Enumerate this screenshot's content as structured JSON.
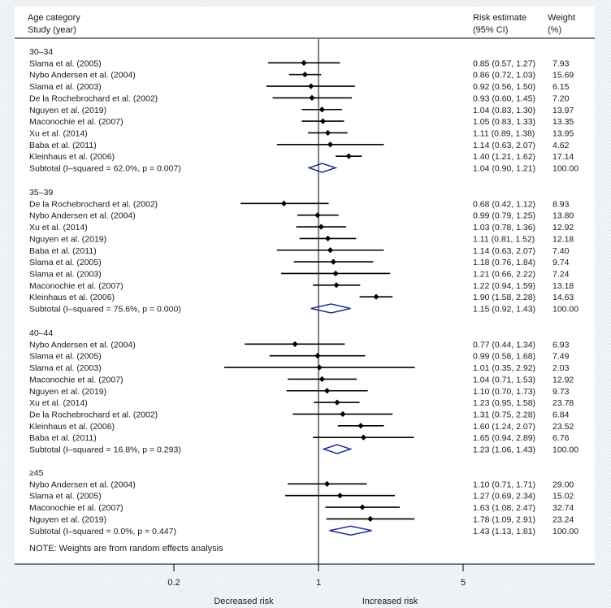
{
  "header": {
    "col1_line1": "Age category",
    "col1_line2": "Study (year)",
    "col2_line1": "Risk estimate",
    "col2_line2": "(95% CI)",
    "col3_line1": "Weight",
    "col3_line2": "(%)"
  },
  "note": "NOTE: Weights are from random effects analysis",
  "chart_data": {
    "type": "forest",
    "xscale": "log",
    "null_value": 1,
    "xticks": [
      0.2,
      1,
      5
    ],
    "xtick_labels": [
      "0.2",
      "1",
      "5"
    ],
    "direction_labels": {
      "left": "Decreased risk",
      "right": "Increased risk"
    },
    "groups": [
      {
        "label": "30–34",
        "studies": [
          {
            "study": "Slama et al. (2005)",
            "est": 0.85,
            "lo": 0.57,
            "hi": 1.27,
            "ci": "0.85 (0.57, 1.27)",
            "weight": "7.93"
          },
          {
            "study": "Nybo Andersen et al. (2004)",
            "est": 0.86,
            "lo": 0.72,
            "hi": 1.03,
            "ci": "0.86 (0.72, 1.03)",
            "weight": "15.69"
          },
          {
            "study": "Slama et al. (2003)",
            "est": 0.92,
            "lo": 0.56,
            "hi": 1.5,
            "ci": "0.92 (0.56, 1.50)",
            "weight": "6.15"
          },
          {
            "study": "De la Rochebrochard et al. (2002)",
            "est": 0.93,
            "lo": 0.6,
            "hi": 1.45,
            "ci": "0.93 (0.60, 1.45)",
            "weight": "7.20"
          },
          {
            "study": "Nguyen et al. (2019)",
            "est": 1.04,
            "lo": 0.83,
            "hi": 1.3,
            "ci": "1.04 (0.83, 1.30)",
            "weight": "13.97"
          },
          {
            "study": "Maconochie et al. (2007)",
            "est": 1.05,
            "lo": 0.83,
            "hi": 1.33,
            "ci": "1.05 (0.83, 1.33)",
            "weight": "13.35"
          },
          {
            "study": "Xu et al. (2014)",
            "est": 1.11,
            "lo": 0.89,
            "hi": 1.38,
            "ci": "1.11 (0.89, 1.38)",
            "weight": "13.95"
          },
          {
            "study": "Baba et al. (2011)",
            "est": 1.14,
            "lo": 0.63,
            "hi": 2.07,
            "ci": "1.14 (0.63, 2.07)",
            "weight": "4.62"
          },
          {
            "study": "Kleinhaus et al. (2006)",
            "est": 1.4,
            "lo": 1.21,
            "hi": 1.62,
            "ci": "1.40 (1.21, 1.62)",
            "weight": "17.14"
          }
        ],
        "subtotal": {
          "label": "Subtotal  (I–squared = 62.0%, p = 0.007)",
          "est": 1.04,
          "lo": 0.9,
          "hi": 1.21,
          "ci": "1.04 (0.90, 1.21)",
          "weight": "100.00"
        }
      },
      {
        "label": "35–39",
        "studies": [
          {
            "study": "De la Rochebrochard et al. (2002)",
            "est": 0.68,
            "lo": 0.42,
            "hi": 1.12,
            "ci": "0.68 (0.42, 1.12)",
            "weight": "8.93"
          },
          {
            "study": "Nybo Andersen et al. (2004)",
            "est": 0.99,
            "lo": 0.79,
            "hi": 1.25,
            "ci": "0.99 (0.79, 1.25)",
            "weight": "13.80"
          },
          {
            "study": "Xu et al. (2014)",
            "est": 1.03,
            "lo": 0.78,
            "hi": 1.36,
            "ci": "1.03 (0.78, 1.36)",
            "weight": "12.92"
          },
          {
            "study": "Nguyen et al. (2019)",
            "est": 1.11,
            "lo": 0.81,
            "hi": 1.52,
            "ci": "1.11 (0.81, 1.52)",
            "weight": "12.18"
          },
          {
            "study": "Baba et al. (2011)",
            "est": 1.14,
            "lo": 0.63,
            "hi": 2.07,
            "ci": "1.14 (0.63, 2.07)",
            "weight": "7.40"
          },
          {
            "study": "Slama et al. (2005)",
            "est": 1.18,
            "lo": 0.76,
            "hi": 1.84,
            "ci": "1.18 (0.76, 1.84)",
            "weight": "9.74"
          },
          {
            "study": "Slama et al. (2003)",
            "est": 1.21,
            "lo": 0.66,
            "hi": 2.22,
            "ci": "1.21 (0.66, 2.22)",
            "weight": "7.24"
          },
          {
            "study": "Maconochie et al. (2007)",
            "est": 1.22,
            "lo": 0.94,
            "hi": 1.59,
            "ci": "1.22 (0.94, 1.59)",
            "weight": "13.18"
          },
          {
            "study": "Kleinhaus et al. (2006)",
            "est": 1.9,
            "lo": 1.58,
            "hi": 2.28,
            "ci": "1.90 (1.58, 2.28)",
            "weight": "14.63"
          }
        ],
        "subtotal": {
          "label": "Subtotal  (I–squared = 75.6%, p = 0.000)",
          "est": 1.15,
          "lo": 0.92,
          "hi": 1.43,
          "ci": "1.15 (0.92, 1.43)",
          "weight": "100.00"
        }
      },
      {
        "label": "40–44",
        "studies": [
          {
            "study": "Nybo Andersen et al. (2004)",
            "est": 0.77,
            "lo": 0.44,
            "hi": 1.34,
            "ci": "0.77 (0.44, 1.34)",
            "weight": "6.93"
          },
          {
            "study": "Slama et al. (2005)",
            "est": 0.99,
            "lo": 0.58,
            "hi": 1.68,
            "ci": "0.99 (0.58, 1.68)",
            "weight": "7.49"
          },
          {
            "study": "Slama et al. (2003)",
            "est": 1.01,
            "lo": 0.35,
            "hi": 2.92,
            "ci": "1.01 (0.35, 2.92)",
            "weight": "2.03"
          },
          {
            "study": "Maconochie et al. (2007)",
            "est": 1.04,
            "lo": 0.71,
            "hi": 1.53,
            "ci": "1.04 (0.71, 1.53)",
            "weight": "12.92"
          },
          {
            "study": "Nguyen et al. (2019)",
            "est": 1.1,
            "lo": 0.7,
            "hi": 1.73,
            "ci": "1.10 (0.70, 1.73)",
            "weight": "9.73"
          },
          {
            "study": "Xu et al. (2014)",
            "est": 1.23,
            "lo": 0.95,
            "hi": 1.58,
            "ci": "1.23 (0.95, 1.58)",
            "weight": "23.78"
          },
          {
            "study": "De la Rochebrochard et al. (2002)",
            "est": 1.31,
            "lo": 0.75,
            "hi": 2.28,
            "ci": "1.31 (0.75, 2.28)",
            "weight": "6.84"
          },
          {
            "study": "Kleinhaus et al. (2006)",
            "est": 1.6,
            "lo": 1.24,
            "hi": 2.07,
            "ci": "1.60 (1.24, 2.07)",
            "weight": "23.52"
          },
          {
            "study": "Baba et al. (2011)",
            "est": 1.65,
            "lo": 0.94,
            "hi": 2.89,
            "ci": "1.65 (0.94, 2.89)",
            "weight": "6.76"
          }
        ],
        "subtotal": {
          "label": "Subtotal  (I–squared = 16.8%, p = 0.293)",
          "est": 1.23,
          "lo": 1.06,
          "hi": 1.43,
          "ci": "1.23 (1.06, 1.43)",
          "weight": "100.00"
        }
      },
      {
        "label": "≥45",
        "studies": [
          {
            "study": "Nybo Andersen et al. (2004)",
            "est": 1.1,
            "lo": 0.71,
            "hi": 1.71,
            "ci": "1.10 (0.71, 1.71)",
            "weight": "29.00"
          },
          {
            "study": "Slama et al. (2005)",
            "est": 1.27,
            "lo": 0.69,
            "hi": 2.34,
            "ci": "1.27 (0.69, 2.34)",
            "weight": "15.02"
          },
          {
            "study": "Maconochie et al. (2007)",
            "est": 1.63,
            "lo": 1.08,
            "hi": 2.47,
            "ci": "1.63 (1.08, 2.47)",
            "weight": "32.74"
          },
          {
            "study": "Nguyen et al. (2019)",
            "est": 1.78,
            "lo": 1.09,
            "hi": 2.91,
            "ci": "1.78 (1.09, 2.91)",
            "weight": "23.24"
          }
        ],
        "subtotal": {
          "label": "Subtotal  (I–squared = 0.0%, p = 0.447)",
          "est": 1.43,
          "lo": 1.13,
          "hi": 1.81,
          "ci": "1.43 (1.13, 1.81)",
          "weight": "100.00"
        }
      }
    ]
  },
  "colors": {
    "text": "#1a1a1a",
    "line": "#000000",
    "diamond": "#1f2f8f",
    "frame": "#e6ebf1"
  }
}
